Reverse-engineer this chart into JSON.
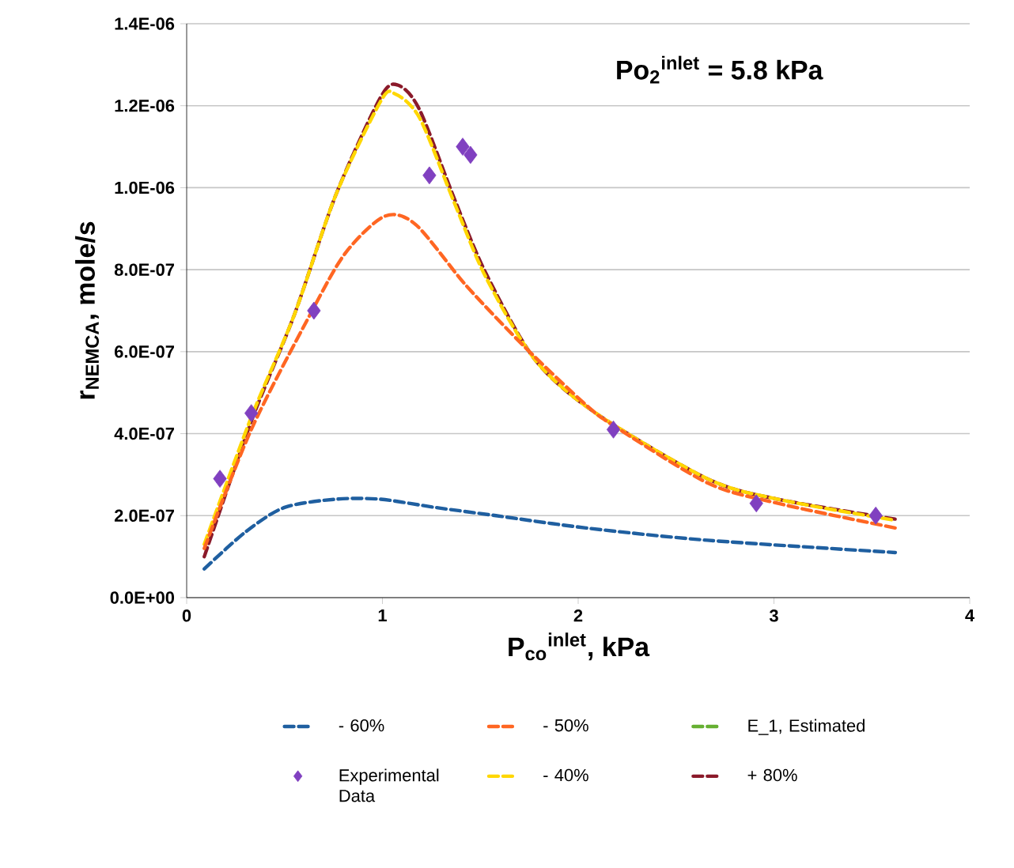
{
  "chart_data": {
    "type": "line",
    "xlabel": "P$_{co}$$^{inlet}$, kPa",
    "ylabel": "r$_{NEMCA}$,  mole/s",
    "annotations": [
      "Po$_{2}$$^{inlet}$ = 5.8 kPa"
    ],
    "xlim": [
      0,
      4
    ],
    "xticks": [
      0,
      1,
      2,
      3,
      4
    ],
    "ylim": [
      0,
      1.4e-06
    ],
    "yticks": [
      {
        "value": 0,
        "label": "0.0E+00"
      },
      {
        "value": 2e-07,
        "label": "2.0E-07"
      },
      {
        "value": 4e-07,
        "label": "4.0E-07"
      },
      {
        "value": 6e-07,
        "label": "6.0E-07"
      },
      {
        "value": 8e-07,
        "label": "8.0E-07"
      },
      {
        "value": 1e-06,
        "label": "1.0E-06"
      },
      {
        "value": 1.2e-06,
        "label": "1.2E-06"
      },
      {
        "value": 1.4e-06,
        "label": "1.4E-06"
      }
    ],
    "grid": "y",
    "legend": "bottom",
    "series": [
      {
        "name": "- 60%",
        "type": "line",
        "line_style": "dashed",
        "color": "#1f5fa0",
        "x": [
          0.09,
          0.3,
          0.5,
          0.76,
          0.99,
          1.27,
          1.58,
          2.04,
          2.66,
          3.62
        ],
        "values": [
          7e-08,
          1.6e-07,
          2.2e-07,
          2.4e-07,
          2.4e-07,
          2.2e-07,
          2e-07,
          1.7e-07,
          1.4e-07,
          1.1e-07
        ]
      },
      {
        "name": "- 50%",
        "type": "line",
        "line_style": "dashed",
        "color": "#ff6622",
        "x": [
          0.09,
          0.33,
          0.63,
          0.81,
          1.01,
          1.17,
          1.43,
          1.73,
          2.04,
          2.18,
          2.66,
          3.02,
          3.62
        ],
        "values": [
          1.2e-07,
          4.1e-07,
          6.9e-07,
          8.4e-07,
          9.3e-07,
          9.1e-07,
          7.6e-07,
          6.1e-07,
          4.7e-07,
          4.2e-07,
          2.8e-07,
          2.3e-07,
          1.7e-07
        ]
      },
      {
        "name": "E_1, Estimated",
        "type": "line",
        "line_style": "dashed",
        "color": "#66b032"
      },
      {
        "name": "Experimental Data",
        "type": "scatter",
        "marker": "diamond",
        "color": "#8040c0",
        "x": [
          0.17,
          0.33,
          0.65,
          1.24,
          1.41,
          1.45,
          2.18,
          2.91,
          3.52
        ],
        "values": [
          2.9e-07,
          4.5e-07,
          7e-07,
          1.03e-06,
          1.1e-06,
          1.08e-06,
          4.1e-07,
          2.3e-07,
          2e-07
        ]
      },
      {
        "name": "- 40%",
        "type": "line",
        "line_style": "dashed",
        "color": "#ffd700",
        "x": [
          0.09,
          0.33,
          0.55,
          0.76,
          0.99,
          1.06,
          1.19,
          1.37,
          1.53,
          1.78,
          2.09,
          2.66,
          3.02,
          3.6
        ],
        "values": [
          1.3e-07,
          4.4e-07,
          6.9e-07,
          9.8e-07,
          1.21e-06,
          1.23e-06,
          1.17e-06,
          9.6e-07,
          7.8e-07,
          5.8e-07,
          4.5e-07,
          2.9e-07,
          2.4e-07,
          1.9e-07
        ]
      },
      {
        "name": "+ 80%",
        "type": "line",
        "line_style": "dashed",
        "color": "#8b1a2a",
        "x": [
          0.09,
          0.33,
          0.55,
          0.76,
          0.99,
          1.08,
          1.19,
          1.37,
          1.53,
          1.78,
          2.09,
          2.66,
          3.02,
          3.64
        ],
        "values": [
          1e-07,
          4.3e-07,
          6.9e-07,
          9.8e-07,
          1.22e-06,
          1.25e-06,
          1.19e-06,
          9.7e-07,
          7.9e-07,
          5.8e-07,
          4.5e-07,
          2.9e-07,
          2.4e-07,
          1.9e-07
        ]
      }
    ]
  }
}
